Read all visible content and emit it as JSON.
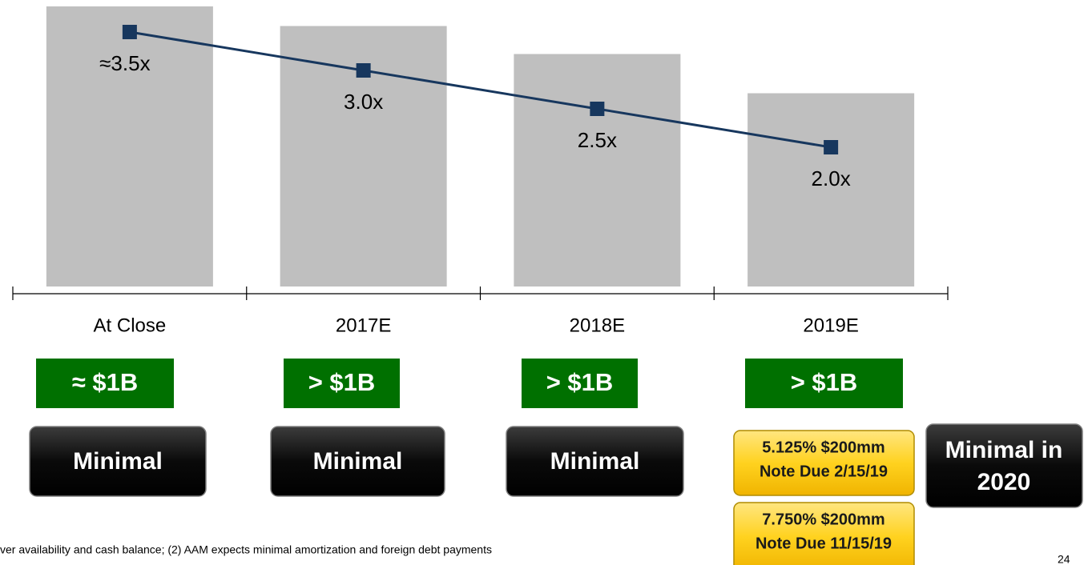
{
  "chart_data": {
    "type": "combo",
    "categories": [
      "At Close",
      "2017E",
      "2018E",
      "2019E"
    ],
    "ylim": [
      0,
      100
    ],
    "y2lim": [
      2.0,
      3.5
    ],
    "series": [
      {
        "type": "bar",
        "color": "#bfbfbf",
        "values": [
          100,
          93,
          83,
          69
        ]
      },
      {
        "type": "line",
        "axis": "y2",
        "color": "#17375e",
        "values": [
          3.5,
          3.0,
          2.5,
          2.0
        ],
        "value_labels": [
          "≈3.5x",
          "3.0x",
          "2.5x",
          "2.0x"
        ]
      }
    ]
  },
  "liquidity": [
    "≈ $1B",
    "> $1B",
    "> $1B",
    "> $1B"
  ],
  "maturities": [
    [
      "Minimal"
    ],
    [
      "Minimal"
    ],
    [
      "Minimal"
    ]
  ],
  "notes_2019": [
    [
      "5.125% $200mm",
      "Note Due 2/15/19"
    ],
    [
      "7.750% $200mm",
      "Note Due 11/15/19"
    ]
  ],
  "maturity_2020": [
    "Minimal in",
    "2020"
  ],
  "footnote": "ver availability and cash balance; (2) AAM expects minimal amortization and foreign debt payments",
  "page_number": "24"
}
